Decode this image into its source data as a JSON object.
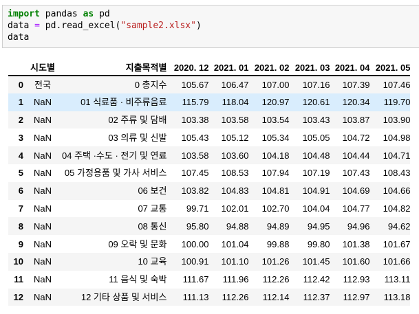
{
  "code_cell": {
    "lines": [
      [
        {
          "type": "keyword",
          "text": "import"
        },
        {
          "type": "plain",
          "text": " pandas "
        },
        {
          "type": "keyword",
          "text": "as"
        },
        {
          "type": "plain",
          "text": " pd"
        }
      ],
      [
        {
          "type": "plain",
          "text": "data "
        },
        {
          "type": "operator",
          "text": "="
        },
        {
          "type": "plain",
          "text": " pd.read_excel("
        },
        {
          "type": "string",
          "text": "\"sample2.xlsx\""
        },
        {
          "type": "plain",
          "text": ")"
        }
      ],
      [
        {
          "type": "plain",
          "text": "data"
        }
      ]
    ]
  },
  "dataframe": {
    "index_header": "",
    "columns": [
      "시도별",
      "지출목적별",
      "2020. 12",
      "2021. 01",
      "2021. 02",
      "2021. 03",
      "2021. 04",
      "2021. 05"
    ],
    "rows": [
      {
        "index": "0",
        "sido": "전국",
        "purpose": "0 총지수",
        "values": [
          "105.67",
          "106.47",
          "107.00",
          "107.16",
          "107.39",
          "107.46"
        ],
        "highlighted": false
      },
      {
        "index": "1",
        "sido": "NaN",
        "purpose": "01 식료품 · 비주류음료",
        "values": [
          "115.79",
          "118.04",
          "120.97",
          "120.61",
          "120.34",
          "119.70"
        ],
        "highlighted": true
      },
      {
        "index": "2",
        "sido": "NaN",
        "purpose": "02 주류 및 담배",
        "values": [
          "103.38",
          "103.58",
          "103.54",
          "103.43",
          "103.87",
          "103.90"
        ],
        "highlighted": false
      },
      {
        "index": "3",
        "sido": "NaN",
        "purpose": "03 의류 및 신발",
        "values": [
          "105.43",
          "105.12",
          "105.34",
          "105.05",
          "104.72",
          "104.98"
        ],
        "highlighted": false
      },
      {
        "index": "4",
        "sido": "NaN",
        "purpose": "04 주택 ·수도 · 전기 및 연료",
        "values": [
          "103.58",
          "103.60",
          "104.18",
          "104.48",
          "104.44",
          "104.71"
        ],
        "highlighted": false
      },
      {
        "index": "5",
        "sido": "NaN",
        "purpose": "05 가정용품 및 가사 서비스",
        "values": [
          "107.45",
          "108.53",
          "107.94",
          "107.19",
          "107.43",
          "108.43"
        ],
        "highlighted": false
      },
      {
        "index": "6",
        "sido": "NaN",
        "purpose": "06 보건",
        "values": [
          "103.82",
          "104.83",
          "104.81",
          "104.91",
          "104.69",
          "104.66"
        ],
        "highlighted": false
      },
      {
        "index": "7",
        "sido": "NaN",
        "purpose": "07 교통",
        "values": [
          "99.71",
          "102.01",
          "102.70",
          "104.04",
          "104.77",
          "104.82"
        ],
        "highlighted": false
      },
      {
        "index": "8",
        "sido": "NaN",
        "purpose": "08 통신",
        "values": [
          "95.80",
          "94.88",
          "94.89",
          "94.95",
          "94.96",
          "94.62"
        ],
        "highlighted": false
      },
      {
        "index": "9",
        "sido": "NaN",
        "purpose": "09 오락 및 문화",
        "values": [
          "100.00",
          "101.04",
          "99.88",
          "99.80",
          "101.38",
          "101.67"
        ],
        "highlighted": false
      },
      {
        "index": "10",
        "sido": "NaN",
        "purpose": "10 교육",
        "values": [
          "100.91",
          "101.10",
          "101.26",
          "101.45",
          "101.60",
          "101.66"
        ],
        "highlighted": false
      },
      {
        "index": "11",
        "sido": "NaN",
        "purpose": "11 음식 및 숙박",
        "values": [
          "111.67",
          "111.96",
          "112.26",
          "112.42",
          "112.93",
          "113.11"
        ],
        "highlighted": false
      },
      {
        "index": "12",
        "sido": "NaN",
        "purpose": "12 기타 상품 및 서비스",
        "values": [
          "111.13",
          "112.26",
          "112.14",
          "112.37",
          "112.97",
          "113.18"
        ],
        "highlighted": false
      }
    ]
  },
  "colors": {
    "keyword": "#008000",
    "operator": "#AA22FF",
    "string": "#BA2121",
    "code_cell_background": "#f7f7f7",
    "code_cell_border": "#cfcfcf",
    "row_stripe": "#f5f5f5",
    "row_hover_highlight": "#d9edfd",
    "header_rule": "#000000"
  }
}
